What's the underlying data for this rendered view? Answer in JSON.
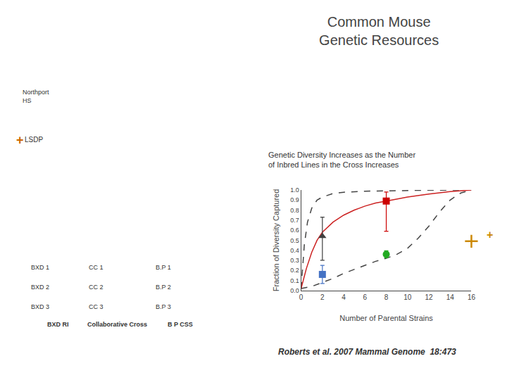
{
  "chart_data": {
    "type": "line",
    "title": "Common Mouse\nGenetic Resources",
    "subtitle": "Genetic Diversity Increases as the Number\nof Inbred Lines in the Cross Increases",
    "xlabel": "Number of Parental Strains",
    "ylabel": "Fraction of Diversity Captured",
    "xlim": [
      0,
      16
    ],
    "ylim": [
      0.0,
      1.0
    ],
    "xticks": [
      0,
      2,
      4,
      6,
      8,
      10,
      12,
      14,
      16
    ],
    "yticks": [
      {
        "value": 0.0,
        "label": "0.0"
      },
      0.1,
      0.2,
      0.3,
      0.4,
      0.5,
      0.6,
      0.7,
      0.8,
      0.9,
      {
        "value": 1.0,
        "label": "1.0"
      }
    ],
    "grid": false,
    "series": [
      {
        "type": "line",
        "color": "#444444",
        "line_style": "dashed",
        "x": [
          0,
          0.3,
          0.6,
          1,
          1.5,
          2,
          3,
          4,
          6,
          8,
          10,
          12,
          14,
          15.5,
          16
        ],
        "values": [
          0.02,
          0.45,
          0.68,
          0.82,
          0.9,
          0.93,
          0.965,
          0.978,
          0.988,
          0.993,
          0.996,
          0.998,
          0.999,
          0.9995,
          1.0
        ]
      },
      {
        "type": "line",
        "color": "#444444",
        "line_style": "dashed",
        "x": [
          0,
          1,
          2,
          3,
          4,
          5,
          6,
          7,
          8,
          9,
          10,
          11,
          12,
          13,
          14,
          15,
          16
        ],
        "values": [
          0.02,
          0.04,
          0.08,
          0.12,
          0.17,
          0.21,
          0.25,
          0.29,
          0.32,
          0.36,
          0.42,
          0.52,
          0.64,
          0.78,
          0.9,
          0.97,
          1.0
        ]
      },
      {
        "type": "line",
        "color": "#cc2222",
        "line_style": "solid",
        "x": [
          0,
          0.5,
          1,
          1.5,
          2,
          3,
          4,
          5,
          6,
          7,
          8,
          9,
          10,
          12,
          14,
          16
        ],
        "values": [
          0.02,
          0.22,
          0.38,
          0.5,
          0.58,
          0.68,
          0.75,
          0.8,
          0.84,
          0.87,
          0.89,
          0.91,
          0.93,
          0.96,
          0.985,
          1.0
        ]
      },
      {
        "type": "scatter",
        "color": "#4472c4",
        "marker": "square",
        "x": [
          2
        ],
        "values": [
          0.16
        ],
        "error_minus": [
          0.09
        ],
        "error_plus": [
          0.09
        ]
      },
      {
        "type": "scatter",
        "color": "#404040",
        "marker": "triangle",
        "x": [
          2
        ],
        "values": [
          0.54
        ],
        "error_minus": [
          0.24
        ],
        "error_plus": [
          0.19
        ]
      },
      {
        "type": "scatter",
        "color": "#cc0000",
        "marker": "square",
        "x": [
          8
        ],
        "values": [
          0.89
        ],
        "error_minus": [
          0.3
        ],
        "error_plus": [
          0.09
        ]
      },
      {
        "type": "scatter",
        "color": "#22aa22",
        "marker": "circle",
        "x": [
          8
        ],
        "values": [
          0.36
        ],
        "error_minus": [
          0.035
        ],
        "error_plus": [
          0.035
        ]
      },
      {
        "type": "scatter",
        "color": "#cc8800",
        "marker": "plus",
        "x": [
          16
        ],
        "values": [
          0.49
        ]
      }
    ],
    "annotations": [
      {
        "text": "Northport\nHS"
      },
      {
        "text": "+",
        "color": "#cc6600"
      },
      {
        "text": "LSDP"
      },
      {
        "text": "BXD 1"
      },
      {
        "text": "BXD 2"
      },
      {
        "text": "BXD 3"
      },
      {
        "text": "BXD RI"
      },
      {
        "text": "CC 1"
      },
      {
        "text": "CC 2"
      },
      {
        "text": "CC 3"
      },
      {
        "text": "Collaborative Cross"
      },
      {
        "text": "B.P 1"
      },
      {
        "text": "B.P 2"
      },
      {
        "text": "B.P 3"
      },
      {
        "text": "B P CSS"
      },
      {
        "text": "+",
        "color": "#cc8800"
      },
      {
        "text": "Roberts et al. 2007 Mammal Genome  18:473"
      }
    ]
  }
}
